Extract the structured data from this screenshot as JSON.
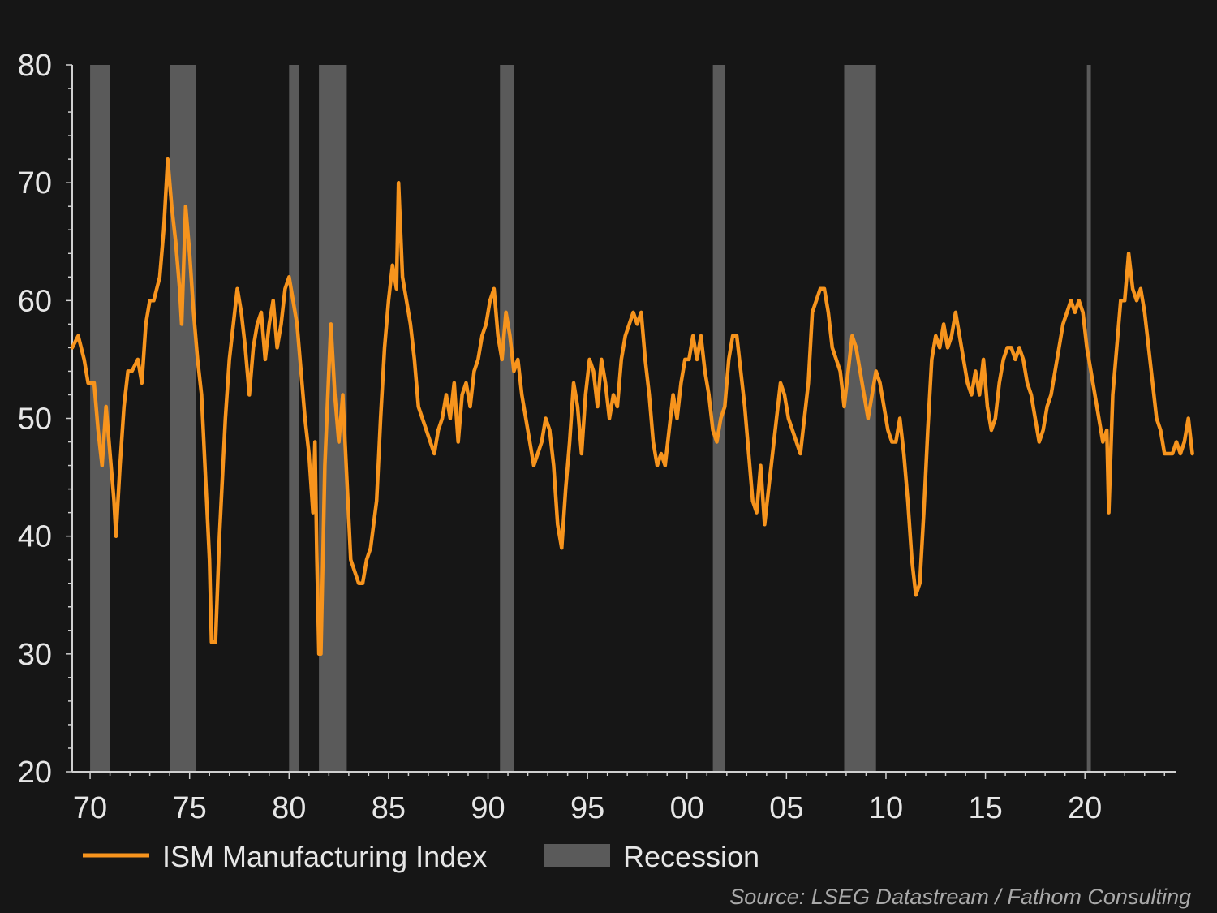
{
  "chart_data": {
    "type": "line",
    "title": "",
    "xlabel": "",
    "ylabel": "",
    "ylim": [
      20,
      80
    ],
    "xlim": [
      1969.1,
      2024.6
    ],
    "x_ticks": [
      {
        "x": 1970,
        "label": "70"
      },
      {
        "x": 1975,
        "label": "75"
      },
      {
        "x": 1980,
        "label": "80"
      },
      {
        "x": 1985,
        "label": "85"
      },
      {
        "x": 1990,
        "label": "90"
      },
      {
        "x": 1995,
        "label": "95"
      },
      {
        "x": 2000,
        "label": "00"
      },
      {
        "x": 2005,
        "label": "05"
      },
      {
        "x": 2010,
        "label": "10"
      },
      {
        "x": 2015,
        "label": "15"
      },
      {
        "x": 2020,
        "label": "20"
      }
    ],
    "y_ticks": [
      {
        "y": 20,
        "label": "20"
      },
      {
        "y": 30,
        "label": "30"
      },
      {
        "y": 40,
        "label": "40"
      },
      {
        "y": 50,
        "label": "50"
      },
      {
        "y": 60,
        "label": "60"
      },
      {
        "y": 70,
        "label": "70"
      },
      {
        "y": 80,
        "label": "80"
      }
    ],
    "grid": false,
    "legend_position": "bottom",
    "series": [
      {
        "name": "ISM Manufacturing Index",
        "color": "#f7941d",
        "points": [
          [
            1969.1,
            56
          ],
          [
            1969.4,
            57
          ],
          [
            1969.7,
            55
          ],
          [
            1969.9,
            53
          ],
          [
            1970.2,
            53
          ],
          [
            1970.4,
            49
          ],
          [
            1970.6,
            46
          ],
          [
            1970.8,
            51
          ],
          [
            1971.0,
            47
          ],
          [
            1971.2,
            43
          ],
          [
            1971.3,
            40
          ],
          [
            1971.5,
            46
          ],
          [
            1971.7,
            51
          ],
          [
            1971.9,
            54
          ],
          [
            1972.1,
            54
          ],
          [
            1972.4,
            55
          ],
          [
            1972.6,
            53
          ],
          [
            1972.8,
            58
          ],
          [
            1973.0,
            60
          ],
          [
            1973.2,
            60
          ],
          [
            1973.5,
            62
          ],
          [
            1973.7,
            66
          ],
          [
            1973.9,
            72
          ],
          [
            1974.1,
            68
          ],
          [
            1974.3,
            65
          ],
          [
            1974.5,
            61
          ],
          [
            1974.6,
            58
          ],
          [
            1974.8,
            68
          ],
          [
            1975.0,
            64
          ],
          [
            1975.2,
            59
          ],
          [
            1975.4,
            55
          ],
          [
            1975.6,
            52
          ],
          [
            1975.8,
            45
          ],
          [
            1976.0,
            38
          ],
          [
            1976.1,
            31
          ],
          [
            1976.3,
            31
          ],
          [
            1976.5,
            40
          ],
          [
            1976.8,
            50
          ],
          [
            1977.0,
            55
          ],
          [
            1977.2,
            58
          ],
          [
            1977.4,
            61
          ],
          [
            1977.6,
            59
          ],
          [
            1977.8,
            56
          ],
          [
            1978.0,
            52
          ],
          [
            1978.2,
            56
          ],
          [
            1978.4,
            58
          ],
          [
            1978.6,
            59
          ],
          [
            1978.8,
            55
          ],
          [
            1979.0,
            58
          ],
          [
            1979.2,
            60
          ],
          [
            1979.4,
            56
          ],
          [
            1979.6,
            58
          ],
          [
            1979.8,
            61
          ],
          [
            1980.0,
            62
          ],
          [
            1980.2,
            60
          ],
          [
            1980.4,
            58
          ],
          [
            1980.6,
            54
          ],
          [
            1980.8,
            50
          ],
          [
            1981.0,
            47
          ],
          [
            1981.2,
            42
          ],
          [
            1981.3,
            48
          ],
          [
            1981.4,
            38
          ],
          [
            1981.5,
            30
          ],
          [
            1981.6,
            30
          ],
          [
            1981.8,
            46
          ],
          [
            1982.0,
            54
          ],
          [
            1982.1,
            58
          ],
          [
            1982.3,
            52
          ],
          [
            1982.5,
            48
          ],
          [
            1982.7,
            52
          ],
          [
            1982.9,
            45
          ],
          [
            1983.1,
            38
          ],
          [
            1983.3,
            37
          ],
          [
            1983.5,
            36
          ],
          [
            1983.7,
            36
          ],
          [
            1983.9,
            38
          ],
          [
            1984.1,
            39
          ],
          [
            1984.4,
            43
          ],
          [
            1984.6,
            50
          ],
          [
            1984.8,
            56
          ],
          [
            1985.0,
            60
          ],
          [
            1985.2,
            63
          ],
          [
            1985.4,
            61
          ],
          [
            1985.5,
            70
          ],
          [
            1985.7,
            62
          ],
          [
            1985.9,
            60
          ],
          [
            1986.1,
            58
          ],
          [
            1986.3,
            55
          ],
          [
            1986.5,
            51
          ],
          [
            1986.7,
            50
          ],
          [
            1986.9,
            49
          ],
          [
            1987.1,
            48
          ],
          [
            1987.3,
            47
          ],
          [
            1987.5,
            49
          ],
          [
            1987.7,
            50
          ],
          [
            1987.9,
            52
          ],
          [
            1988.1,
            50
          ],
          [
            1988.3,
            53
          ],
          [
            1988.5,
            48
          ],
          [
            1988.7,
            52
          ],
          [
            1988.9,
            53
          ],
          [
            1989.1,
            51
          ],
          [
            1989.3,
            54
          ],
          [
            1989.5,
            55
          ],
          [
            1989.7,
            57
          ],
          [
            1989.9,
            58
          ],
          [
            1990.1,
            60
          ],
          [
            1990.3,
            61
          ],
          [
            1990.5,
            57
          ],
          [
            1990.7,
            55
          ],
          [
            1990.9,
            59
          ],
          [
            1991.1,
            57
          ],
          [
            1991.3,
            54
          ],
          [
            1991.5,
            55
          ],
          [
            1991.7,
            52
          ],
          [
            1991.9,
            50
          ],
          [
            1992.1,
            48
          ],
          [
            1992.3,
            46
          ],
          [
            1992.5,
            47
          ],
          [
            1992.7,
            48
          ],
          [
            1992.9,
            50
          ],
          [
            1993.1,
            49
          ],
          [
            1993.3,
            46
          ],
          [
            1993.5,
            41
          ],
          [
            1993.7,
            39
          ],
          [
            1993.9,
            44
          ],
          [
            1994.1,
            48
          ],
          [
            1994.3,
            53
          ],
          [
            1994.5,
            51
          ],
          [
            1994.7,
            47
          ],
          [
            1994.9,
            52
          ],
          [
            1995.1,
            55
          ],
          [
            1995.3,
            54
          ],
          [
            1995.5,
            51
          ],
          [
            1995.7,
            55
          ],
          [
            1995.9,
            53
          ],
          [
            1996.1,
            50
          ],
          [
            1996.3,
            52
          ],
          [
            1996.5,
            51
          ],
          [
            1996.7,
            55
          ],
          [
            1996.9,
            57
          ],
          [
            1997.1,
            58
          ],
          [
            1997.3,
            59
          ],
          [
            1997.5,
            58
          ],
          [
            1997.7,
            59
          ],
          [
            1997.9,
            55
          ],
          [
            1998.1,
            52
          ],
          [
            1998.3,
            48
          ],
          [
            1998.5,
            46
          ],
          [
            1998.7,
            47
          ],
          [
            1998.9,
            46
          ],
          [
            1999.1,
            49
          ],
          [
            1999.3,
            52
          ],
          [
            1999.5,
            50
          ],
          [
            1999.7,
            53
          ],
          [
            1999.9,
            55
          ],
          [
            2000.1,
            55
          ],
          [
            2000.3,
            57
          ],
          [
            2000.5,
            55
          ],
          [
            2000.7,
            57
          ],
          [
            2000.9,
            54
          ],
          [
            2001.1,
            52
          ],
          [
            2001.3,
            49
          ],
          [
            2001.5,
            48
          ],
          [
            2001.7,
            50
          ],
          [
            2001.9,
            51
          ],
          [
            2002.1,
            55
          ],
          [
            2002.3,
            57
          ],
          [
            2002.5,
            57
          ],
          [
            2002.7,
            54
          ],
          [
            2002.9,
            51
          ],
          [
            2003.1,
            47
          ],
          [
            2003.3,
            43
          ],
          [
            2003.5,
            42
          ],
          [
            2003.7,
            46
          ],
          [
            2003.9,
            41
          ],
          [
            2004.1,
            44
          ],
          [
            2004.3,
            47
          ],
          [
            2004.5,
            50
          ],
          [
            2004.7,
            53
          ],
          [
            2004.9,
            52
          ],
          [
            2005.1,
            50
          ],
          [
            2005.3,
            49
          ],
          [
            2005.5,
            48
          ],
          [
            2005.7,
            47
          ],
          [
            2005.9,
            50
          ],
          [
            2006.1,
            53
          ],
          [
            2006.3,
            59
          ],
          [
            2006.5,
            60
          ],
          [
            2006.7,
            61
          ],
          [
            2006.9,
            61
          ],
          [
            2007.1,
            59
          ],
          [
            2007.3,
            56
          ],
          [
            2007.5,
            55
          ],
          [
            2007.7,
            54
          ],
          [
            2007.9,
            51
          ],
          [
            2008.1,
            54
          ],
          [
            2008.3,
            57
          ],
          [
            2008.5,
            56
          ],
          [
            2008.7,
            54
          ],
          [
            2008.9,
            52
          ],
          [
            2009.1,
            50
          ],
          [
            2009.3,
            52
          ],
          [
            2009.5,
            54
          ],
          [
            2009.7,
            53
          ],
          [
            2009.9,
            51
          ],
          [
            2010.1,
            49
          ],
          [
            2010.3,
            48
          ],
          [
            2010.5,
            48
          ],
          [
            2010.7,
            50
          ],
          [
            2010.9,
            47
          ],
          [
            2011.1,
            43
          ],
          [
            2011.3,
            38
          ],
          [
            2011.5,
            35
          ],
          [
            2011.7,
            36
          ],
          [
            2011.9,
            42
          ],
          [
            2012.1,
            49
          ],
          [
            2012.3,
            55
          ],
          [
            2012.5,
            57
          ],
          [
            2012.7,
            56
          ],
          [
            2012.9,
            58
          ],
          [
            2013.1,
            56
          ],
          [
            2013.3,
            57
          ],
          [
            2013.5,
            59
          ],
          [
            2013.7,
            57
          ],
          [
            2013.9,
            55
          ],
          [
            2014.1,
            53
          ],
          [
            2014.3,
            52
          ],
          [
            2014.5,
            54
          ],
          [
            2014.7,
            52
          ],
          [
            2014.9,
            55
          ],
          [
            2015.1,
            51
          ],
          [
            2015.3,
            49
          ],
          [
            2015.5,
            50
          ],
          [
            2015.7,
            53
          ],
          [
            2015.9,
            55
          ],
          [
            2016.1,
            56
          ],
          [
            2016.3,
            56
          ],
          [
            2016.5,
            55
          ],
          [
            2016.7,
            56
          ],
          [
            2016.9,
            55
          ],
          [
            2017.1,
            53
          ],
          [
            2017.3,
            52
          ],
          [
            2017.5,
            50
          ],
          [
            2017.7,
            48
          ],
          [
            2017.9,
            49
          ],
          [
            2018.1,
            51
          ],
          [
            2018.3,
            52
          ],
          [
            2018.5,
            54
          ],
          [
            2018.7,
            56
          ],
          [
            2018.9,
            58
          ],
          [
            2019.1,
            59
          ],
          [
            2019.3,
            60
          ],
          [
            2019.5,
            59
          ],
          [
            2019.7,
            60
          ],
          [
            2019.9,
            59
          ],
          [
            2020.1,
            56
          ],
          [
            2020.3,
            54
          ],
          [
            2020.5,
            52
          ],
          [
            2020.7,
            50
          ],
          [
            2020.9,
            48
          ],
          [
            2021.1,
            49
          ],
          [
            2021.2,
            42
          ],
          [
            2021.4,
            52
          ],
          [
            2021.6,
            56
          ],
          [
            2021.8,
            60
          ],
          [
            2022.0,
            60
          ],
          [
            2022.2,
            64
          ],
          [
            2022.4,
            61
          ],
          [
            2022.6,
            60
          ],
          [
            2022.8,
            61
          ],
          [
            2023.0,
            59
          ],
          [
            2023.2,
            56
          ],
          [
            2023.4,
            53
          ],
          [
            2023.6,
            50
          ],
          [
            2023.8,
            49
          ],
          [
            2024.0,
            47
          ],
          [
            2024.2,
            47
          ],
          [
            2024.4,
            47
          ],
          [
            2024.6,
            48
          ],
          [
            2024.8,
            47
          ],
          [
            2025.0,
            48
          ],
          [
            2025.2,
            50
          ],
          [
            2025.4,
            47
          ]
        ]
      },
      {
        "name": "Recession",
        "color": "#5a5a5a",
        "type": "band",
        "periods": [
          [
            1970.0,
            1971.0
          ],
          [
            1974.0,
            1975.3
          ],
          [
            1980.0,
            1980.5
          ],
          [
            1981.5,
            1982.9
          ],
          [
            1990.6,
            1991.3
          ],
          [
            2001.3,
            2001.9
          ],
          [
            2007.9,
            2009.5
          ],
          [
            2020.1,
            2020.3
          ]
        ]
      }
    ],
    "source": "Source: LSEG Datastream / Fathom Consulting"
  },
  "legend": {
    "items": [
      {
        "label": "ISM Manufacturing Index",
        "color": "#f7941d"
      },
      {
        "label": "Recession",
        "color": "#5a5a5a"
      }
    ]
  }
}
